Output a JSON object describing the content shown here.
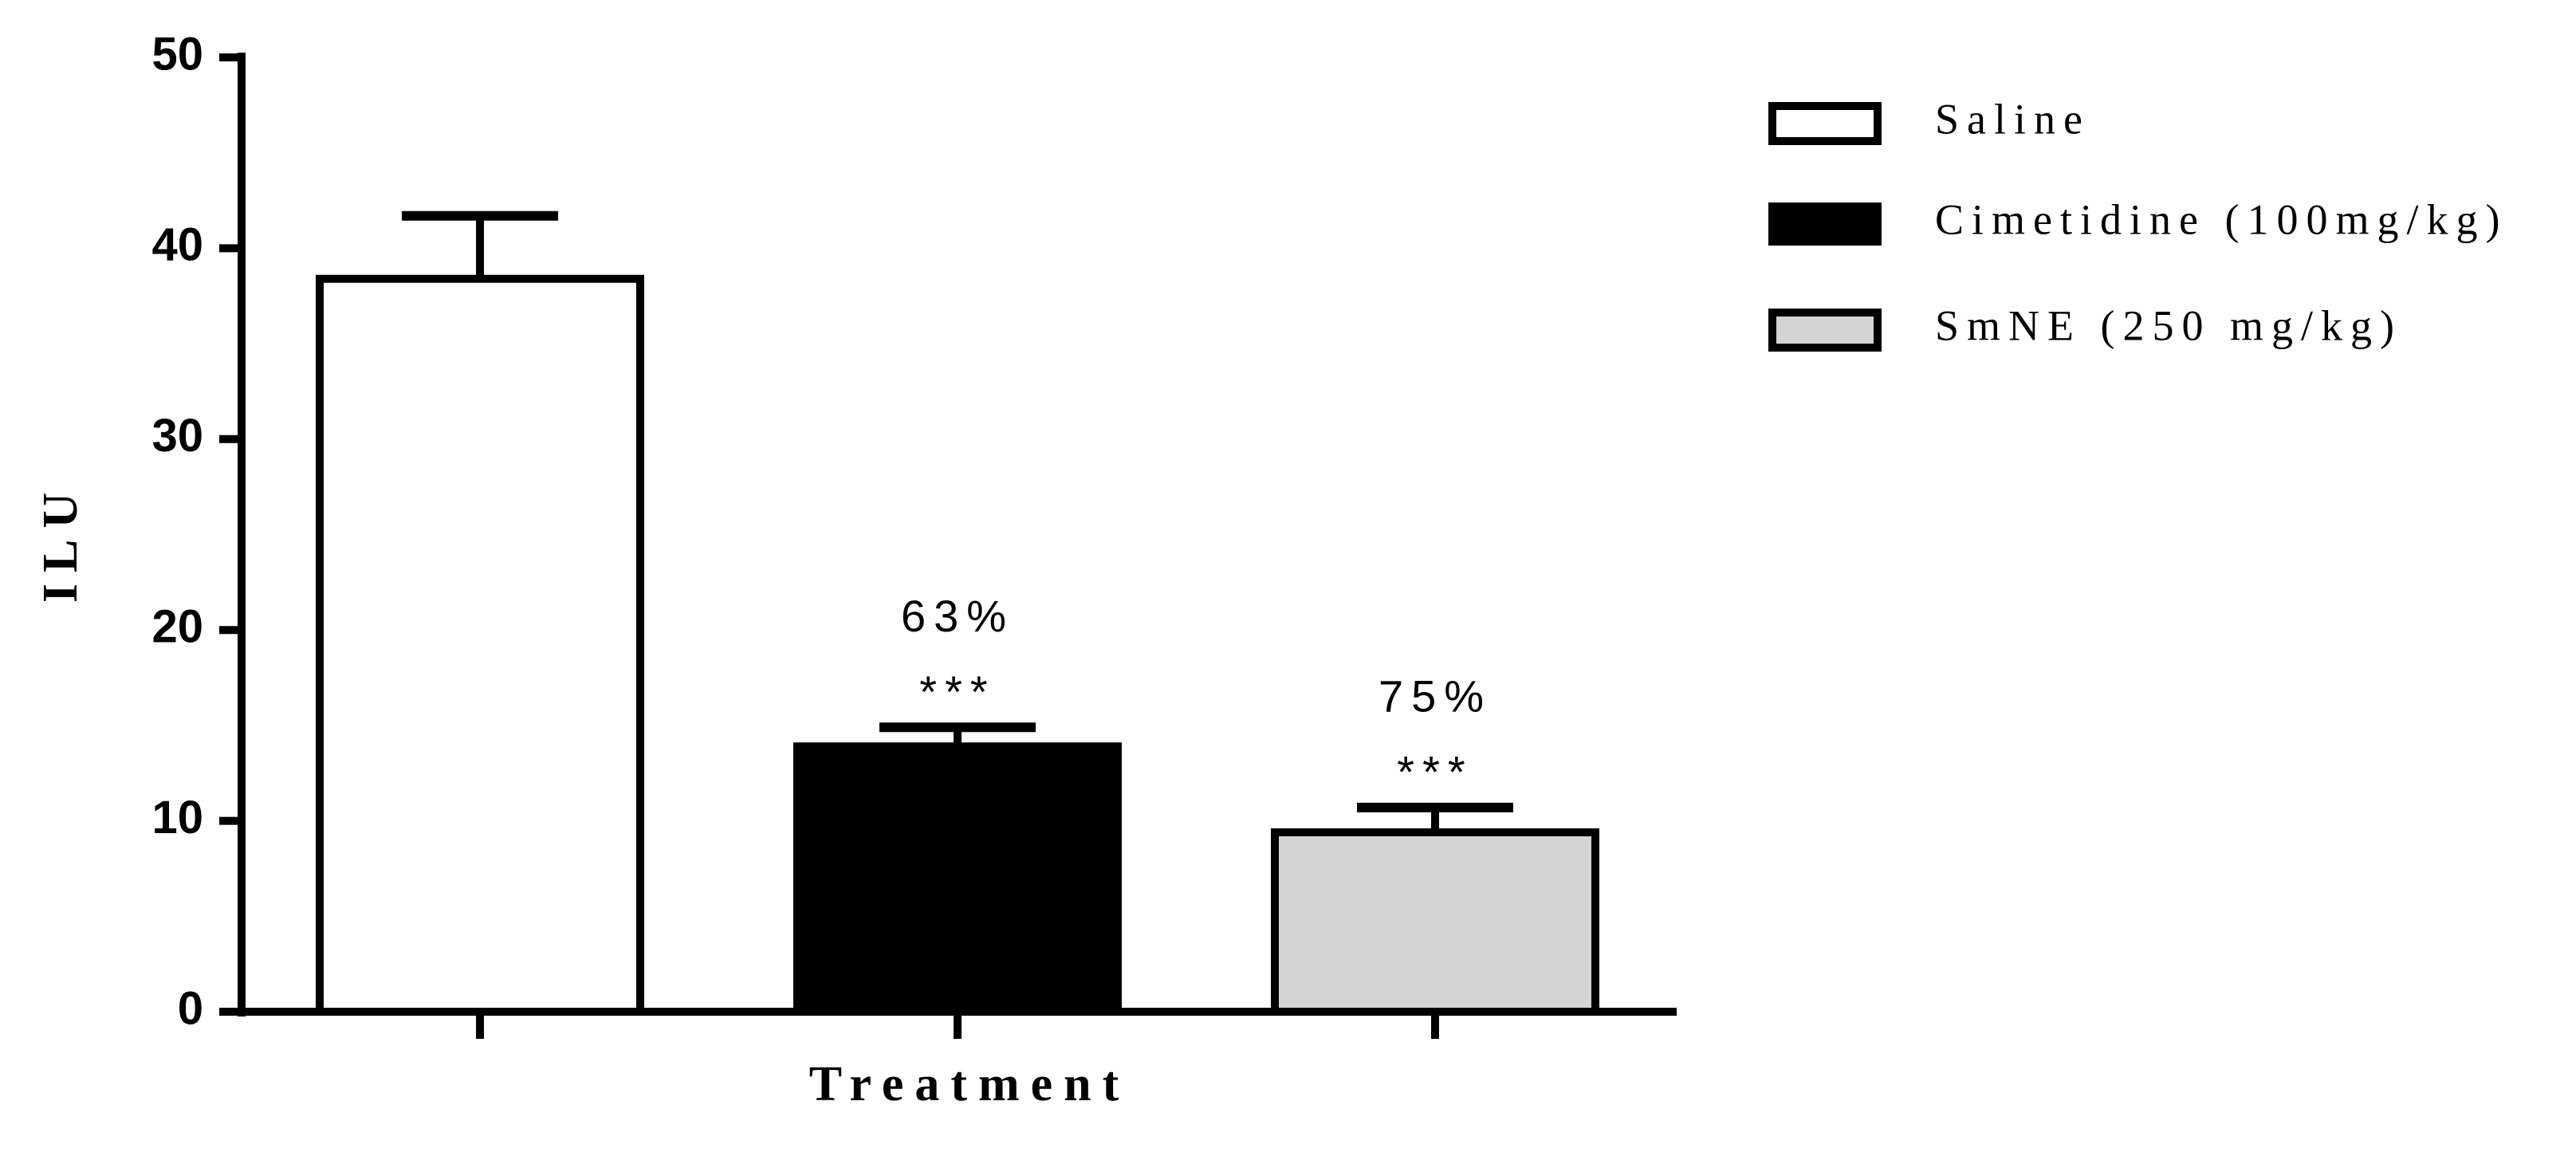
{
  "chart_data": {
    "type": "bar",
    "x_label": "Treatment",
    "y_label": "ILU",
    "categories": [
      null,
      null,
      null
    ],
    "series": [
      {
        "name": "Saline",
        "color": "#ffffff",
        "values": [
          38.4,
          null,
          null
        ],
        "errors": [
          3.3,
          null,
          null
        ]
      },
      {
        "name": "Cimetidine (100mg/kg)",
        "color": "#000000",
        "values": [
          null,
          13.9,
          null
        ],
        "errors": [
          null,
          1.0,
          null
        ]
      },
      {
        "name": "SmNE (250 mg/kg)",
        "color": "#d4d4d4",
        "values": [
          null,
          null,
          9.4
        ],
        "errors": [
          null,
          null,
          1.3
        ]
      }
    ],
    "annotations": [
      null,
      {
        "percent": "63%",
        "significance": "***"
      },
      {
        "percent": "75%",
        "significance": "***"
      }
    ],
    "ylim": [
      0,
      50
    ],
    "yticks": [
      0,
      10,
      20,
      30,
      40,
      50
    ],
    "legend": "right"
  }
}
